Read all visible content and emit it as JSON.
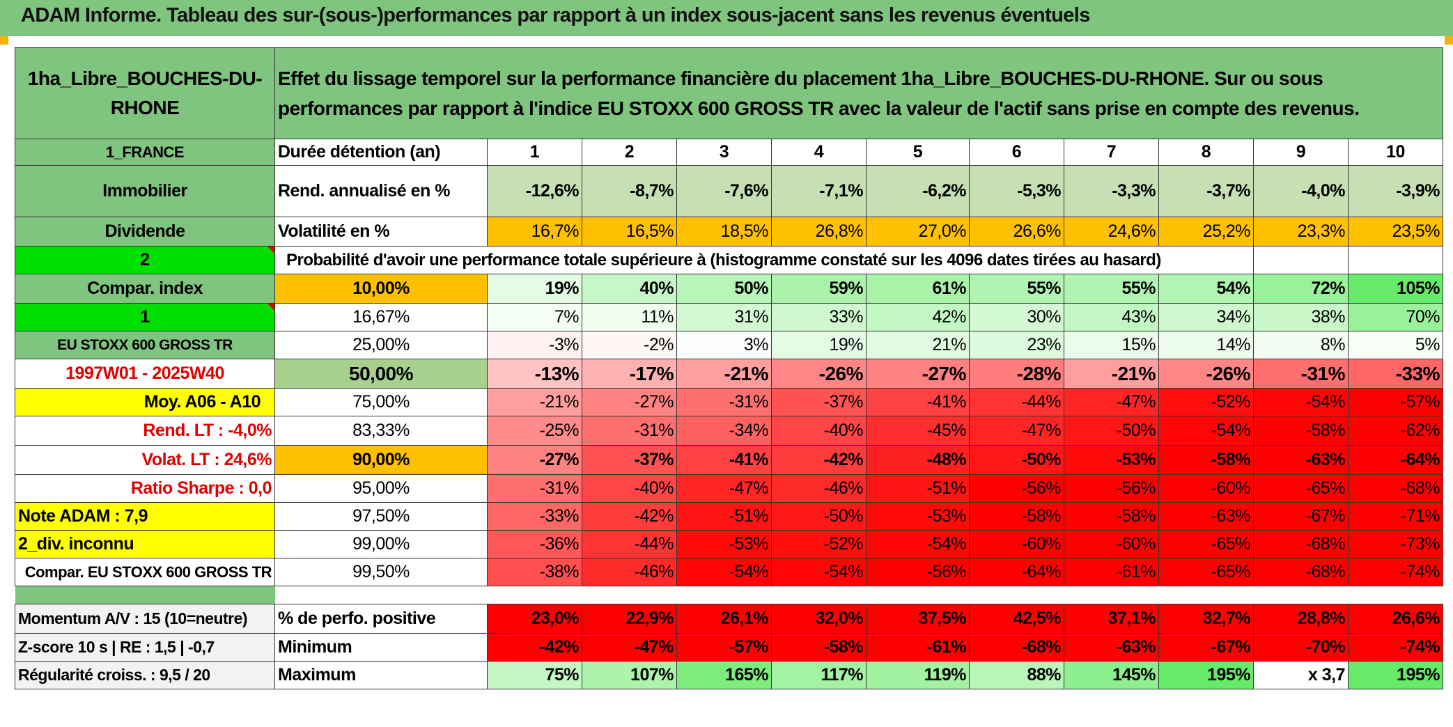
{
  "header": {
    "title": "ADAM Informe. Tableau des sur-(sous-)performances par rapport à un index sous-jacent sans les revenus éventuels"
  },
  "asset": {
    "name": "1ha_Libre_BOUCHES-DU-RHONE",
    "description": "Effet du lissage temporel sur la performance financière du placement 1ha_Libre_BOUCHES-DU-RHONE. Sur ou sous performances par rapport à l'indice EU STOXX 600 GROSS TR avec la valeur de l'actif sans prise en compte des revenus.",
    "country": "1_FRANCE",
    "category": "Immobilier",
    "type": "Dividende",
    "param1": "2",
    "compar_label": "Compar. index",
    "param2": "1",
    "index_name": "EU STOXX 600 GROSS TR",
    "period": "1997W01 - 2025W40",
    "avg_label": "Moy. A06 - A10",
    "rend_lt": "Rend. LT :    -4,0%",
    "volat_lt": "Volat. LT :   24,6%",
    "sharpe": "Ratio Sharpe :    0,0",
    "note_adam": "Note ADAM : 7,9",
    "div": "2_div. inconnu",
    "compar_full": "Compar. EU STOXX 600 GROSS TR"
  },
  "holding": {
    "label": "Durée détention (an)",
    "years": [
      "1",
      "2",
      "3",
      "4",
      "5",
      "6",
      "7",
      "8",
      "9",
      "10"
    ]
  },
  "rend": {
    "label": "Rend. annualisé en %",
    "values": [
      "-12,6%",
      "-8,7%",
      "-7,6%",
      "-7,1%",
      "-6,2%",
      "-5,3%",
      "-3,3%",
      "-3,7%",
      "-4,0%",
      "-3,9%"
    ]
  },
  "volat": {
    "label": "Volatilité en %",
    "values": [
      "16,7%",
      "16,5%",
      "18,5%",
      "26,8%",
      "27,0%",
      "26,6%",
      "24,6%",
      "25,2%",
      "23,3%",
      "23,5%"
    ]
  },
  "proba_title": "Probabilité d'avoir une performance totale supérieure à (histogramme constaté sur les 4096 dates tirées au hasard)",
  "quantiles": [
    {
      "p": "10,00%",
      "values": [
        "19%",
        "40%",
        "50%",
        "59%",
        "61%",
        "55%",
        "55%",
        "54%",
        "72%",
        "105%"
      ]
    },
    {
      "p": "16,67%",
      "values": [
        "7%",
        "11%",
        "31%",
        "33%",
        "42%",
        "30%",
        "43%",
        "34%",
        "38%",
        "70%"
      ]
    },
    {
      "p": "25,00%",
      "values": [
        "-3%",
        "-2%",
        "3%",
        "19%",
        "21%",
        "23%",
        "15%",
        "14%",
        "8%",
        "5%"
      ]
    },
    {
      "p": "50,00%",
      "values": [
        "-13%",
        "-17%",
        "-21%",
        "-26%",
        "-27%",
        "-28%",
        "-21%",
        "-26%",
        "-31%",
        "-33%"
      ]
    },
    {
      "p": "75,00%",
      "values": [
        "-21%",
        "-27%",
        "-31%",
        "-37%",
        "-41%",
        "-44%",
        "-47%",
        "-52%",
        "-54%",
        "-57%"
      ]
    },
    {
      "p": "83,33%",
      "values": [
        "-25%",
        "-31%",
        "-34%",
        "-40%",
        "-45%",
        "-47%",
        "-50%",
        "-54%",
        "-58%",
        "-62%"
      ]
    },
    {
      "p": "90,00%",
      "values": [
        "-27%",
        "-37%",
        "-41%",
        "-42%",
        "-48%",
        "-50%",
        "-53%",
        "-58%",
        "-63%",
        "-64%"
      ]
    },
    {
      "p": "95,00%",
      "values": [
        "-31%",
        "-40%",
        "-47%",
        "-46%",
        "-51%",
        "-56%",
        "-56%",
        "-60%",
        "-65%",
        "-68%"
      ]
    },
    {
      "p": "97,50%",
      "values": [
        "-33%",
        "-42%",
        "-51%",
        "-50%",
        "-53%",
        "-58%",
        "-58%",
        "-63%",
        "-67%",
        "-71%"
      ]
    },
    {
      "p": "99,00%",
      "values": [
        "-36%",
        "-44%",
        "-53%",
        "-52%",
        "-54%",
        "-60%",
        "-60%",
        "-65%",
        "-68%",
        "-73%"
      ]
    },
    {
      "p": "99,50%",
      "values": [
        "-38%",
        "-46%",
        "-54%",
        "-54%",
        "-56%",
        "-64%",
        "-61%",
        "-65%",
        "-68%",
        "-74%"
      ]
    }
  ],
  "summary": [
    {
      "left": "Momentum A/V : 15 (10=neutre)",
      "label": "% de perfo. positive",
      "values": [
        "23,0%",
        "22,9%",
        "26,1%",
        "32,0%",
        "37,5%",
        "42,5%",
        "37,1%",
        "32,7%",
        "28,8%",
        "26,6%"
      ]
    },
    {
      "left": "Z-score 10 s | RE : 1,5 | -0,7",
      "label": "Minimum",
      "values": [
        "-42%",
        "-47%",
        "-57%",
        "-58%",
        "-61%",
        "-68%",
        "-63%",
        "-67%",
        "-70%",
        "-74%"
      ]
    },
    {
      "left": "Régularité croiss. : 9,5 / 20",
      "label": "Maximum",
      "values": [
        "75%",
        "107%",
        "165%",
        "117%",
        "119%",
        "88%",
        "145%",
        "195%",
        "x 3,7",
        "195%"
      ]
    }
  ]
}
